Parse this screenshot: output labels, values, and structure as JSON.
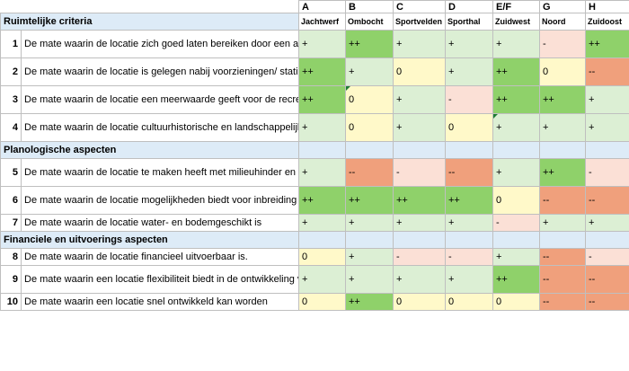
{
  "columns": [
    {
      "letter": "A",
      "location": "Jachtwerf"
    },
    {
      "letter": "B",
      "location": "Ombocht"
    },
    {
      "letter": "C",
      "location": "Sportvelden"
    },
    {
      "letter": "D",
      "location": "Sporthal"
    },
    {
      "letter": "E/F",
      "location": "Zuidwest"
    },
    {
      "letter": "G",
      "location": "Noord"
    },
    {
      "letter": "H",
      "location": "Zuidoost"
    }
  ],
  "colors": {
    "pp": "#8fd16a",
    "p": "#dcefd4",
    "zero": "#fff9c9",
    "m": "#fbe0d6",
    "mm": "#f0a07c",
    "section": "#ddebf7"
  },
  "sections": [
    {
      "title": "Ruimtelijke criteria",
      "rows": [
        {
          "num": "1",
          "text": "De mate waarin de locatie zich goed laten bereiken door een auto via bestaande infrastructuur",
          "values": [
            "+",
            "++",
            "+",
            "+",
            "+",
            "-",
            "++"
          ]
        },
        {
          "num": "2",
          "text": "De mate waarin de locatie is gelegen nabij voorzieningen/ station (fiets- en loopafstand)",
          "values": [
            "++",
            "+",
            "0",
            "+",
            "++",
            "0",
            "--"
          ]
        },
        {
          "num": "3",
          "text": "De mate waarin de locatie een meerwaarde geeft voor de recreatieve kwaliteiten en routes",
          "values": [
            "++",
            "0",
            "+",
            "-",
            "++",
            "++",
            "+"
          ]
        },
        {
          "num": "4",
          "text": "De mate waarin de locatie cultuurhistorische en landschappelijke waarden kan behouden",
          "values": [
            "+",
            "0",
            "+",
            "0",
            "+",
            "+",
            "+"
          ]
        }
      ]
    },
    {
      "title": "Planologische aspecten",
      "rows": [
        {
          "num": "5",
          "text": "De mate waarin de locatie te maken heeft met milieuhinder en omgevingsbeperkingen",
          "values": [
            "+",
            "--",
            "-",
            "--",
            "+",
            "++",
            "-"
          ]
        },
        {
          "num": "6",
          "text": "De mate waarin de locatie mogelijkheden biedt voor inbreiding",
          "values": [
            "++",
            "++",
            "++",
            "++",
            "0",
            "--",
            "--"
          ]
        },
        {
          "num": "7",
          "text": "De mate waarin de locatie water- en bodemgeschikt is",
          "values": [
            "+",
            "+",
            "+",
            "+",
            "-",
            "+",
            "+"
          ]
        }
      ]
    },
    {
      "title": "Financiele en uitvoerings aspecten",
      "rows": [
        {
          "num": "8",
          "text": "De mate waarin de locatie financieel uitvoerbaar is.",
          "values": [
            "0",
            "+",
            "-",
            "-",
            "+",
            "--",
            "-"
          ]
        },
        {
          "num": "9",
          "text": "De mate waarin een locatie flexibiliteit biedt in de ontwikkeling van woningbouw.",
          "values": [
            "+",
            "+",
            "+",
            "+",
            "++",
            "--",
            "--"
          ]
        },
        {
          "num": "10",
          "text": "De mate waarin een locatie snel ontwikkeld kan worden",
          "values": [
            "0",
            "++",
            "0",
            "0",
            "0",
            "--",
            "--"
          ]
        }
      ]
    }
  ]
}
